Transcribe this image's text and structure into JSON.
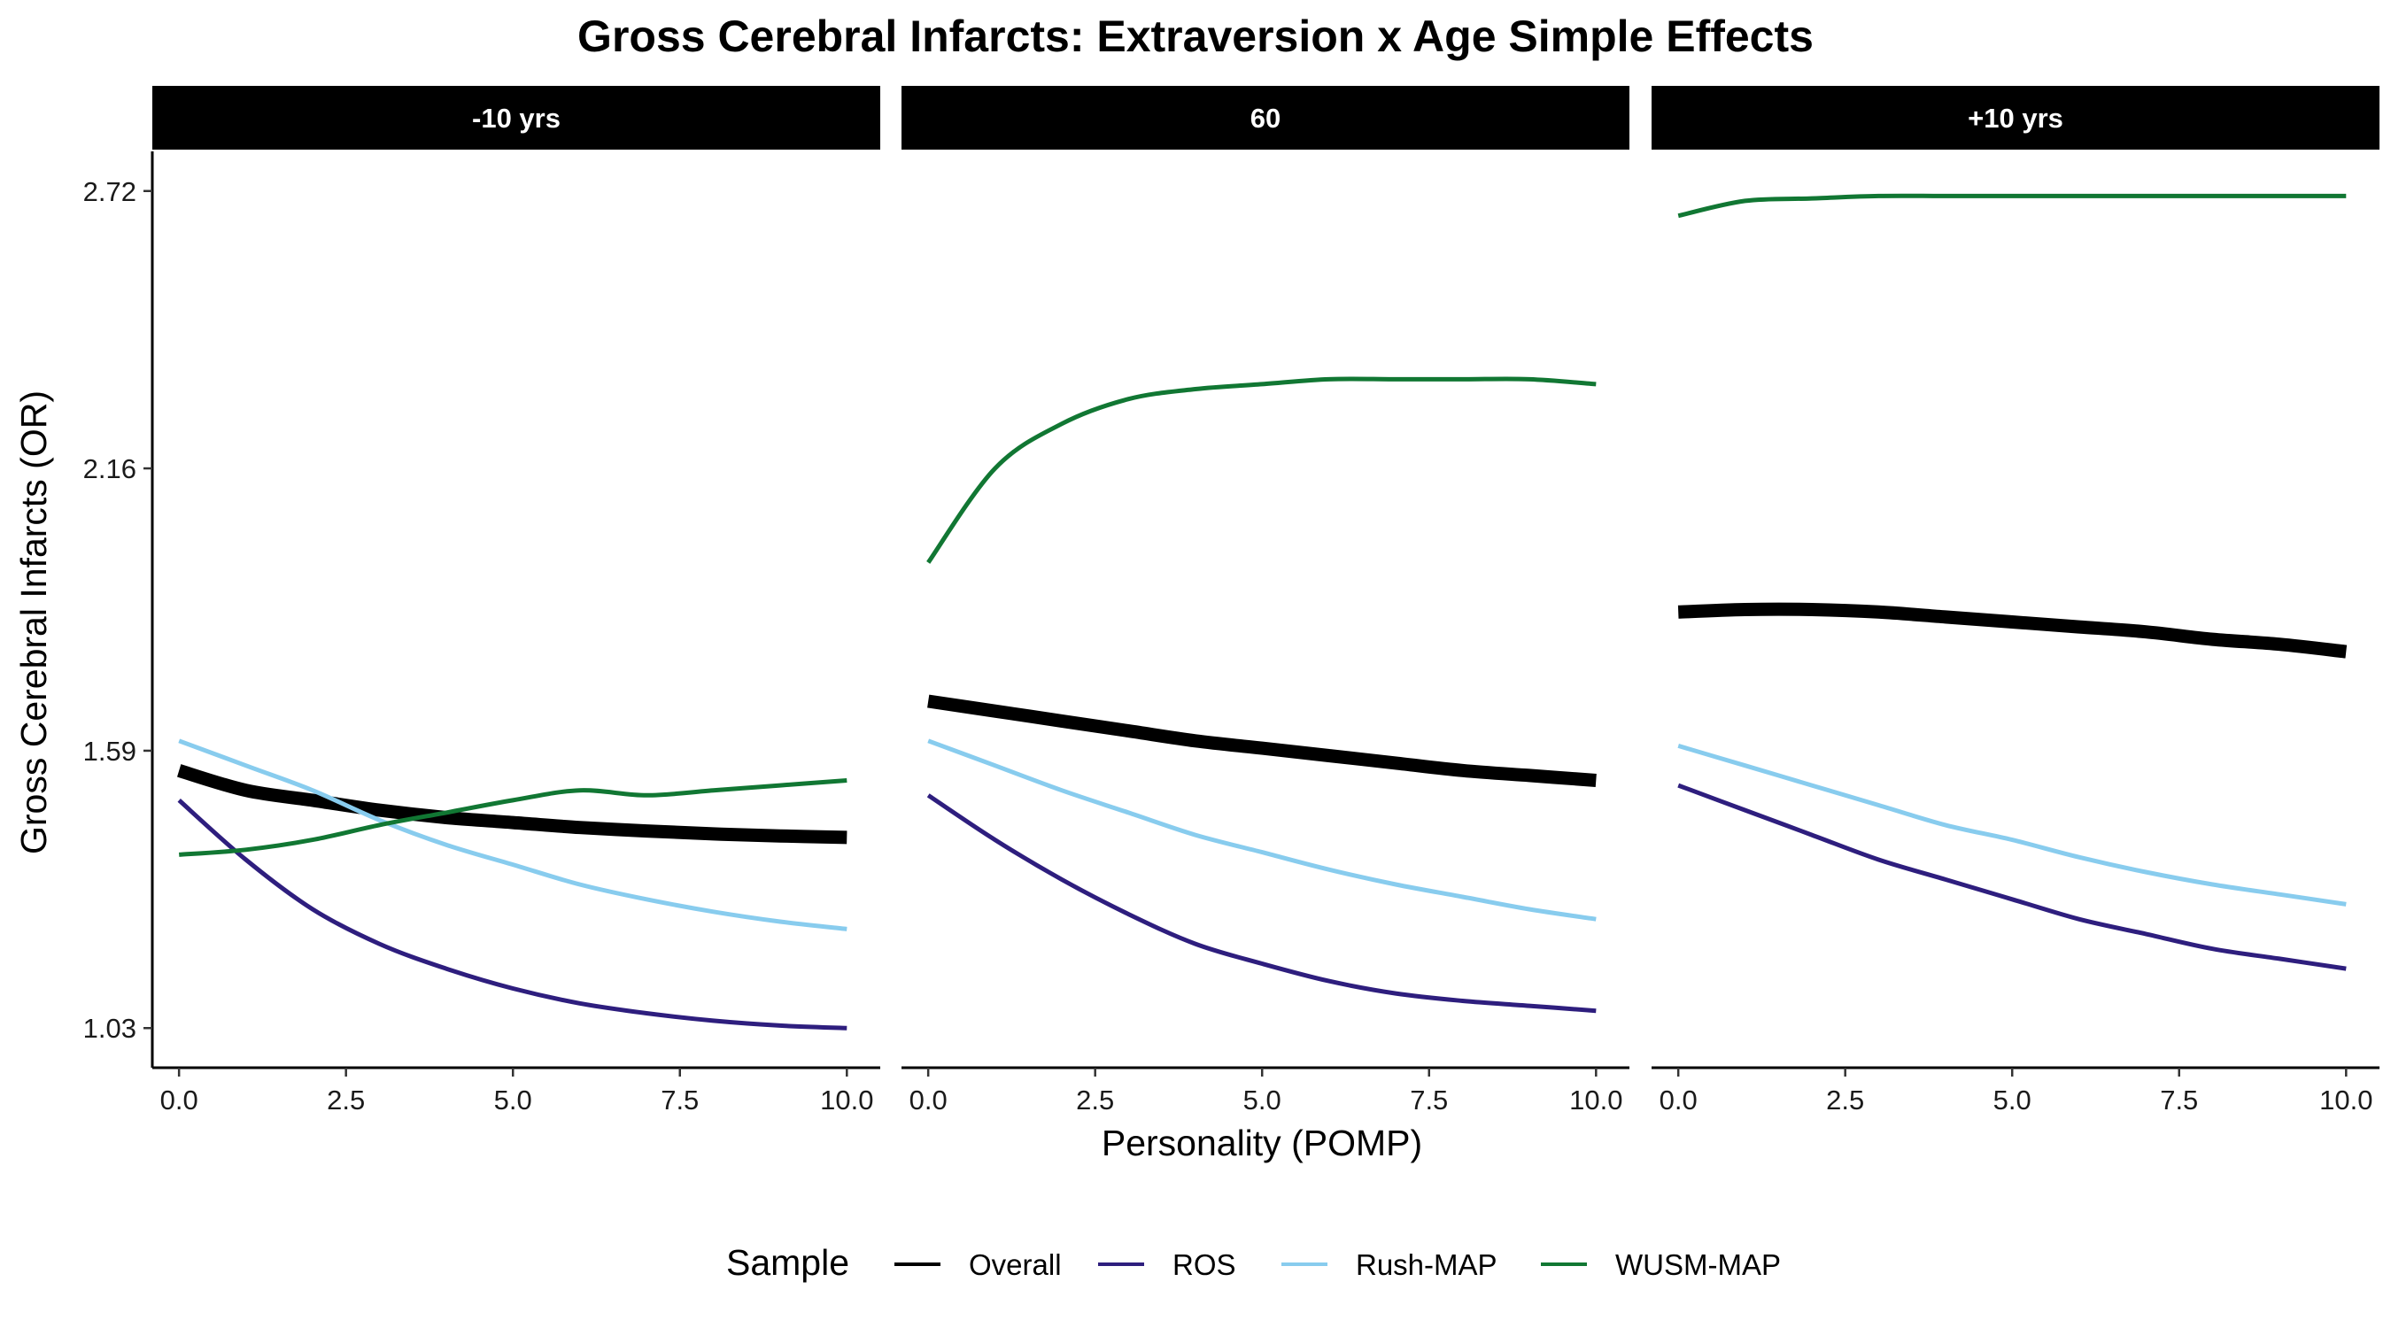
{
  "chart_data": {
    "type": "line",
    "title": "Gross Cerebral Infarcts: Extraversion x Age Simple Effects",
    "xlabel": "Personality (POMP)",
    "ylabel": "Gross Cerebral Infarcts (OR)",
    "x_ticks": [
      "0.0",
      "2.5",
      "5.0",
      "7.5",
      "10.0"
    ],
    "y_ticks": [
      "1.03",
      "1.59",
      "2.16",
      "2.72"
    ],
    "xlim": [
      -0.4,
      10.5
    ],
    "ylim": [
      0.95,
      2.8
    ],
    "x": [
      0,
      1,
      2,
      3,
      4,
      5,
      6,
      7,
      8,
      9,
      10
    ],
    "legend": {
      "title": "Sample",
      "position": "bottom"
    },
    "panels": [
      {
        "label": "-10 yrs",
        "series": [
          {
            "name": "Overall",
            "color": "#000000",
            "values": [
              1.55,
              1.51,
              1.49,
              1.47,
              1.455,
              1.445,
              1.435,
              1.428,
              1.422,
              1.418,
              1.415
            ]
          },
          {
            "name": "ROS",
            "color": "#2E1E7E",
            "values": [
              1.49,
              1.37,
              1.27,
              1.2,
              1.15,
              1.11,
              1.08,
              1.06,
              1.045,
              1.035,
              1.03
            ]
          },
          {
            "name": "Rush-MAP",
            "color": "#88CCEE",
            "values": [
              1.61,
              1.56,
              1.51,
              1.45,
              1.4,
              1.36,
              1.32,
              1.29,
              1.265,
              1.245,
              1.23
            ]
          },
          {
            "name": "WUSM-MAP",
            "color": "#117733",
            "values": [
              1.38,
              1.39,
              1.41,
              1.44,
              1.465,
              1.49,
              1.51,
              1.5,
              1.51,
              1.52,
              1.53
            ]
          }
        ]
      },
      {
        "label": "60",
        "series": [
          {
            "name": "Overall",
            "color": "#000000",
            "values": [
              1.69,
              1.67,
              1.65,
              1.63,
              1.61,
              1.595,
              1.58,
              1.565,
              1.55,
              1.54,
              1.53
            ]
          },
          {
            "name": "ROS",
            "color": "#2E1E7E",
            "values": [
              1.5,
              1.41,
              1.33,
              1.26,
              1.2,
              1.16,
              1.125,
              1.1,
              1.085,
              1.075,
              1.065
            ]
          },
          {
            "name": "Rush-MAP",
            "color": "#88CCEE",
            "values": [
              1.61,
              1.56,
              1.51,
              1.465,
              1.42,
              1.385,
              1.35,
              1.32,
              1.295,
              1.27,
              1.25
            ]
          },
          {
            "name": "WUSM-MAP",
            "color": "#117733",
            "values": [
              1.97,
              2.16,
              2.25,
              2.3,
              2.32,
              2.33,
              2.34,
              2.34,
              2.34,
              2.34,
              2.33
            ]
          }
        ]
      },
      {
        "label": "+10 yrs",
        "series": [
          {
            "name": "Overall",
            "color": "#000000",
            "values": [
              1.87,
              1.875,
              1.875,
              1.87,
              1.86,
              1.85,
              1.84,
              1.83,
              1.815,
              1.805,
              1.79
            ]
          },
          {
            "name": "ROS",
            "color": "#2E1E7E",
            "values": [
              1.52,
              1.47,
              1.42,
              1.37,
              1.33,
              1.29,
              1.25,
              1.22,
              1.19,
              1.17,
              1.15
            ]
          },
          {
            "name": "Rush-MAP",
            "color": "#88CCEE",
            "values": [
              1.6,
              1.56,
              1.52,
              1.48,
              1.44,
              1.41,
              1.375,
              1.345,
              1.32,
              1.3,
              1.28
            ]
          },
          {
            "name": "WUSM-MAP",
            "color": "#117733",
            "values": [
              2.67,
              2.7,
              2.705,
              2.71,
              2.71,
              2.71,
              2.71,
              2.71,
              2.71,
              2.71,
              2.71
            ]
          }
        ]
      }
    ]
  }
}
